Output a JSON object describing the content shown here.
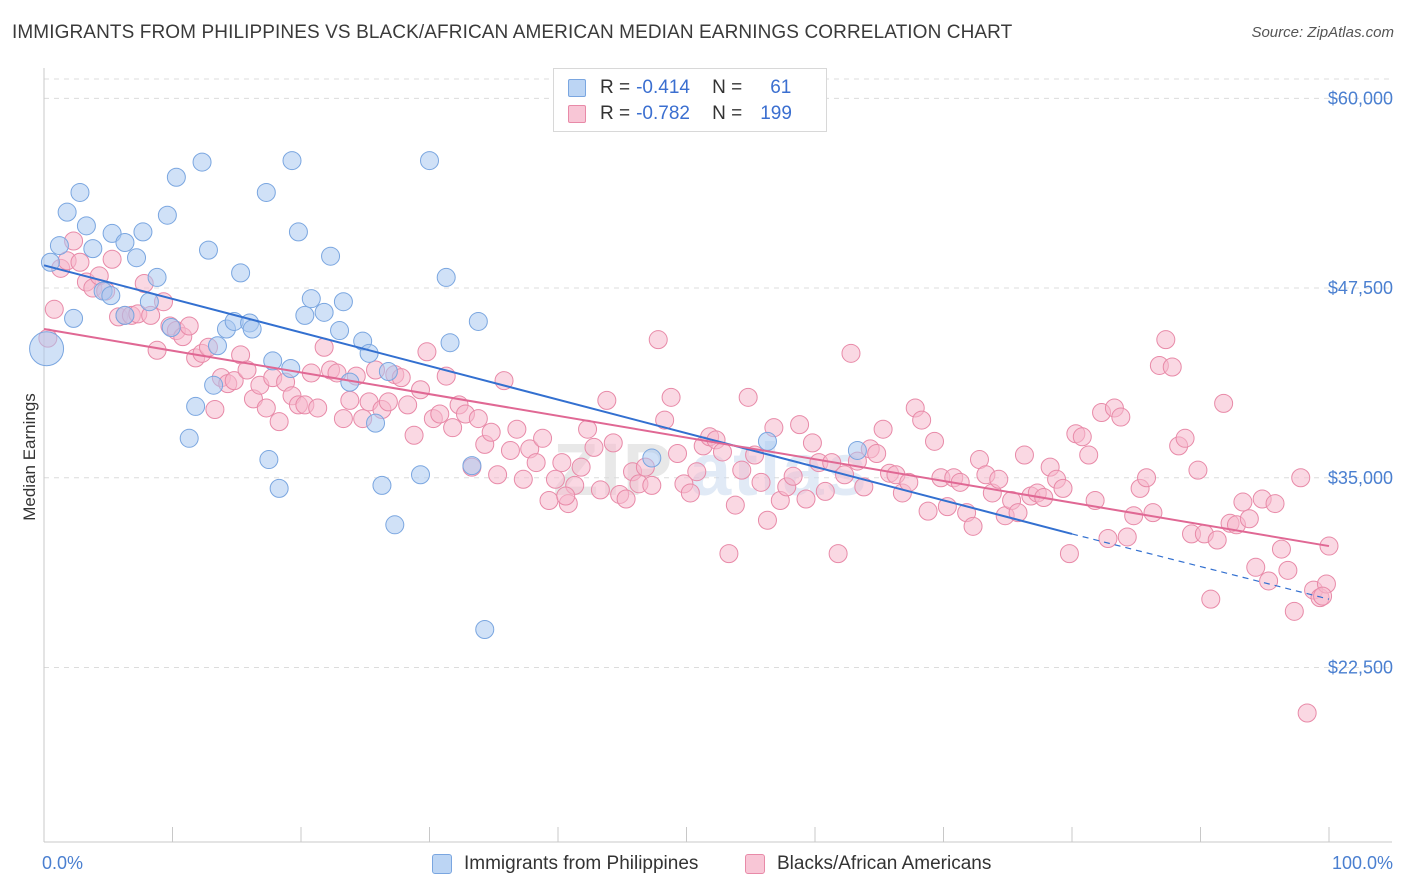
{
  "title": "IMMIGRANTS FROM PHILIPPINES VS BLACK/AFRICAN AMERICAN MEDIAN EARNINGS CORRELATION CHART",
  "source": "Source: ZipAtlas.com",
  "colors": {
    "series1": "#a9c8f0",
    "series1_stroke": "#7aa6e0",
    "series1_line": "#3370d0",
    "series2": "#f5b8cc",
    "series2_stroke": "#e88aa8",
    "series2_line": "#e06894",
    "axis_label": "#4a7fd0",
    "grid": "#dcdcdc"
  },
  "legend": {
    "rows": [
      {
        "r_label": "R =",
        "r_value": "-0.414",
        "n_label": "N =",
        "n_value": "61"
      },
      {
        "r_label": "R =",
        "r_value": "-0.782",
        "n_label": "N =",
        "n_value": "199"
      }
    ]
  },
  "bottom_legend": {
    "series1": "Immigrants from Philippines",
    "series2": "Blacks/African Americans"
  },
  "watermark": {
    "zip": "ZIP",
    "atlas": "atlas"
  },
  "chart_data": {
    "type": "scatter",
    "title": "IMMIGRANTS FROM PHILIPPINES VS BLACK/AFRICAN AMERICAN MEDIAN EARNINGS CORRELATION CHART",
    "xlabel": "",
    "ylabel": "Median Earnings",
    "xlim": [
      0,
      100
    ],
    "ylim": [
      11000,
      62000
    ],
    "x_tick_labels": [
      "0.0%",
      "100.0%"
    ],
    "y_ticks": [
      22500,
      35000,
      47500,
      60000
    ],
    "y_tick_labels": [
      "$22,500",
      "$35,000",
      "$47,500",
      "$60,000"
    ],
    "grid": true,
    "series": [
      {
        "name": "Immigrants from Philippines",
        "r": -0.414,
        "n": 61,
        "trend": {
          "x": [
            0,
            80
          ],
          "y": [
            49000,
            31300
          ],
          "dashed_to": [
            100,
            27000
          ]
        },
        "points": [
          [
            0.2,
            43500,
            3
          ],
          [
            0.5,
            49200,
            1
          ],
          [
            1.2,
            50300,
            1
          ],
          [
            1.8,
            52500,
            1
          ],
          [
            2.3,
            45500,
            1
          ],
          [
            2.8,
            53800,
            1
          ],
          [
            3.3,
            51600,
            1
          ],
          [
            3.8,
            50100,
            1
          ],
          [
            4.6,
            47300,
            1
          ],
          [
            5.2,
            47000,
            1
          ],
          [
            5.3,
            51100,
            1
          ],
          [
            6.3,
            50500,
            1
          ],
          [
            6.3,
            45700,
            1
          ],
          [
            7.2,
            49500,
            1
          ],
          [
            7.7,
            51200,
            1
          ],
          [
            8.2,
            46600,
            1
          ],
          [
            8.8,
            48200,
            1
          ],
          [
            9.6,
            52300,
            1
          ],
          [
            9.9,
            44900,
            1
          ],
          [
            10.3,
            54800,
            1
          ],
          [
            11.3,
            37600,
            1
          ],
          [
            11.8,
            39700,
            1
          ],
          [
            12.3,
            55800,
            1
          ],
          [
            12.8,
            50000,
            1
          ],
          [
            13.2,
            41100,
            1
          ],
          [
            13.5,
            43700,
            1
          ],
          [
            14.2,
            44800,
            1
          ],
          [
            14.8,
            45300,
            1
          ],
          [
            15.3,
            48500,
            1
          ],
          [
            16.0,
            45200,
            1
          ],
          [
            16.2,
            44800,
            1
          ],
          [
            17.3,
            53800,
            1
          ],
          [
            17.5,
            36200,
            1
          ],
          [
            17.8,
            42700,
            1
          ],
          [
            18.3,
            34300,
            1
          ],
          [
            19.2,
            42200,
            1
          ],
          [
            19.3,
            55900,
            1
          ],
          [
            19.8,
            51200,
            1
          ],
          [
            20.3,
            45700,
            1
          ],
          [
            20.8,
            46800,
            1
          ],
          [
            21.8,
            45900,
            1
          ],
          [
            22.3,
            49600,
            1
          ],
          [
            23.0,
            44700,
            1
          ],
          [
            23.3,
            46600,
            1
          ],
          [
            23.8,
            41300,
            1
          ],
          [
            24.8,
            44000,
            1
          ],
          [
            25.3,
            43200,
            1
          ],
          [
            25.8,
            38600,
            1
          ],
          [
            26.3,
            34500,
            1
          ],
          [
            26.8,
            42000,
            1
          ],
          [
            27.3,
            31900,
            1
          ],
          [
            29.3,
            35200,
            1
          ],
          [
            30.0,
            55900,
            1
          ],
          [
            31.3,
            48200,
            1
          ],
          [
            31.6,
            43900,
            1
          ],
          [
            33.3,
            35800,
            1
          ],
          [
            33.8,
            45300,
            1
          ],
          [
            34.3,
            25000,
            1
          ],
          [
            47.3,
            36300,
            1
          ],
          [
            63.3,
            36800,
            1
          ],
          [
            56.3,
            37400,
            1
          ]
        ]
      },
      {
        "name": "Blacks/African Americans",
        "r": -0.782,
        "n": 199,
        "trend": {
          "x": [
            0,
            100
          ],
          "y": [
            44800,
            30500
          ]
        },
        "points": [
          [
            0.3,
            44200
          ],
          [
            0.8,
            46100
          ],
          [
            1.3,
            48800
          ],
          [
            1.8,
            49300
          ],
          [
            2.3,
            50600
          ],
          [
            2.8,
            49200
          ],
          [
            3.3,
            47900
          ],
          [
            3.8,
            47500
          ],
          [
            4.3,
            48300
          ],
          [
            4.8,
            47300
          ],
          [
            5.3,
            49400
          ],
          [
            5.8,
            45600
          ],
          [
            6.3,
            45700
          ],
          [
            6.8,
            45700
          ],
          [
            7.3,
            45800
          ],
          [
            7.8,
            47800
          ],
          [
            8.3,
            45700
          ],
          [
            8.8,
            43400
          ],
          [
            9.3,
            46600
          ],
          [
            9.8,
            45000
          ],
          [
            10.3,
            44700
          ],
          [
            10.8,
            44300
          ],
          [
            11.3,
            45000
          ],
          [
            11.8,
            42900
          ],
          [
            12.3,
            43200
          ],
          [
            12.8,
            43600
          ],
          [
            13.3,
            39500
          ],
          [
            13.8,
            41600
          ],
          [
            14.3,
            41200
          ],
          [
            14.8,
            41400
          ],
          [
            15.3,
            43100
          ],
          [
            15.8,
            42100
          ],
          [
            16.3,
            40200
          ],
          [
            16.8,
            41100
          ],
          [
            17.3,
            39600
          ],
          [
            17.8,
            41600
          ],
          [
            18.3,
            38700
          ],
          [
            18.8,
            41300
          ],
          [
            19.3,
            40400
          ],
          [
            19.8,
            39800
          ],
          [
            20.3,
            39800
          ],
          [
            20.8,
            41900
          ],
          [
            21.3,
            39600
          ],
          [
            21.8,
            43600
          ],
          [
            22.3,
            42100
          ],
          [
            22.8,
            41900
          ],
          [
            23.3,
            38900
          ],
          [
            23.8,
            40100
          ],
          [
            24.3,
            41700
          ],
          [
            24.8,
            38900
          ],
          [
            25.3,
            40000
          ],
          [
            25.8,
            42100
          ],
          [
            26.3,
            39500
          ],
          [
            26.8,
            40000
          ],
          [
            27.3,
            41800
          ],
          [
            27.8,
            41600
          ],
          [
            28.3,
            39800
          ],
          [
            28.8,
            37800
          ],
          [
            29.3,
            40800
          ],
          [
            29.8,
            43300
          ],
          [
            30.3,
            38900
          ],
          [
            30.8,
            39200
          ],
          [
            31.3,
            41700
          ],
          [
            31.8,
            38300
          ],
          [
            32.3,
            39800
          ],
          [
            32.8,
            39200
          ],
          [
            33.3,
            35700
          ],
          [
            33.8,
            38900
          ],
          [
            34.3,
            37200
          ],
          [
            34.8,
            38000
          ],
          [
            35.3,
            35200
          ],
          [
            35.8,
            41400
          ],
          [
            36.3,
            36800
          ],
          [
            36.8,
            38200
          ],
          [
            37.3,
            34900
          ],
          [
            37.8,
            36900
          ],
          [
            38.3,
            36000
          ],
          [
            38.8,
            37600
          ],
          [
            39.3,
            33500
          ],
          [
            39.8,
            34900
          ],
          [
            40.3,
            36000
          ],
          [
            40.8,
            33300
          ],
          [
            41.3,
            34500
          ],
          [
            41.8,
            35700
          ],
          [
            42.3,
            38200
          ],
          [
            42.8,
            37000
          ],
          [
            43.3,
            34200
          ],
          [
            43.8,
            40100
          ],
          [
            44.3,
            37300
          ],
          [
            44.8,
            33900
          ],
          [
            45.3,
            33600
          ],
          [
            45.8,
            35400
          ],
          [
            46.3,
            34600
          ],
          [
            46.8,
            35700
          ],
          [
            47.3,
            34500
          ],
          [
            47.8,
            44100
          ],
          [
            48.3,
            38800
          ],
          [
            48.8,
            40300
          ],
          [
            49.3,
            36600
          ],
          [
            49.8,
            34600
          ],
          [
            50.3,
            34000
          ],
          [
            50.8,
            35400
          ],
          [
            51.3,
            37100
          ],
          [
            51.8,
            37700
          ],
          [
            52.3,
            37500
          ],
          [
            52.8,
            36700
          ],
          [
            53.3,
            30000
          ],
          [
            53.8,
            33200
          ],
          [
            54.3,
            35500
          ],
          [
            54.8,
            40300
          ],
          [
            55.3,
            36500
          ],
          [
            55.8,
            34700
          ],
          [
            56.3,
            32200
          ],
          [
            56.8,
            38300
          ],
          [
            57.3,
            33500
          ],
          [
            57.8,
            34400
          ],
          [
            58.3,
            35100
          ],
          [
            58.8,
            38500
          ],
          [
            59.3,
            33600
          ],
          [
            59.8,
            37300
          ],
          [
            60.3,
            36000
          ],
          [
            60.8,
            34100
          ],
          [
            61.3,
            36000
          ],
          [
            61.8,
            30000
          ],
          [
            62.3,
            35200
          ],
          [
            62.8,
            43200
          ],
          [
            63.3,
            36100
          ],
          [
            63.8,
            34400
          ],
          [
            64.3,
            36900
          ],
          [
            64.8,
            36600
          ],
          [
            65.3,
            38200
          ],
          [
            65.8,
            35300
          ],
          [
            66.3,
            35200
          ],
          [
            66.8,
            34000
          ],
          [
            67.3,
            34700
          ],
          [
            67.8,
            39600
          ],
          [
            68.3,
            38800
          ],
          [
            68.8,
            32800
          ],
          [
            69.3,
            37400
          ],
          [
            69.8,
            35000
          ],
          [
            70.3,
            33100
          ],
          [
            70.8,
            35000
          ],
          [
            71.3,
            34700
          ],
          [
            71.8,
            32700
          ],
          [
            72.3,
            31800
          ],
          [
            72.8,
            36200
          ],
          [
            73.3,
            35200
          ],
          [
            73.8,
            34000
          ],
          [
            74.3,
            34900
          ],
          [
            74.8,
            32500
          ],
          [
            75.3,
            33500
          ],
          [
            75.8,
            32700
          ],
          [
            76.3,
            36500
          ],
          [
            76.8,
            33800
          ],
          [
            77.3,
            34000
          ],
          [
            77.8,
            33700
          ],
          [
            78.3,
            35700
          ],
          [
            78.8,
            34900
          ],
          [
            79.3,
            34300
          ],
          [
            79.8,
            30000
          ],
          [
            80.3,
            37900
          ],
          [
            80.8,
            37700
          ],
          [
            81.3,
            36500
          ],
          [
            81.8,
            33500
          ],
          [
            82.3,
            39300
          ],
          [
            82.8,
            31000
          ],
          [
            83.3,
            39600
          ],
          [
            83.8,
            39000
          ],
          [
            84.3,
            31100
          ],
          [
            84.8,
            32500
          ],
          [
            85.3,
            34300
          ],
          [
            85.8,
            35000
          ],
          [
            86.3,
            32700
          ],
          [
            86.8,
            42400
          ],
          [
            87.3,
            44100
          ],
          [
            87.8,
            42300
          ],
          [
            88.3,
            37100
          ],
          [
            88.8,
            37600
          ],
          [
            89.3,
            31300
          ],
          [
            89.8,
            35500
          ],
          [
            90.3,
            31300
          ],
          [
            90.8,
            27000
          ],
          [
            91.3,
            30900
          ],
          [
            91.8,
            39900
          ],
          [
            92.3,
            32000
          ],
          [
            92.8,
            31900
          ],
          [
            93.3,
            33400
          ],
          [
            93.8,
            32300
          ],
          [
            94.3,
            29100
          ],
          [
            94.8,
            33600
          ],
          [
            95.3,
            28200
          ],
          [
            95.8,
            33300
          ],
          [
            96.3,
            30300
          ],
          [
            96.8,
            28900
          ],
          [
            97.3,
            26200
          ],
          [
            97.8,
            35000
          ],
          [
            98.3,
            19500
          ],
          [
            98.8,
            27600
          ],
          [
            99.3,
            27100
          ],
          [
            99.8,
            28000
          ],
          [
            100.0,
            30500
          ],
          [
            99.5,
            27200
          ],
          [
            40.6,
            33800
          ]
        ]
      }
    ]
  }
}
